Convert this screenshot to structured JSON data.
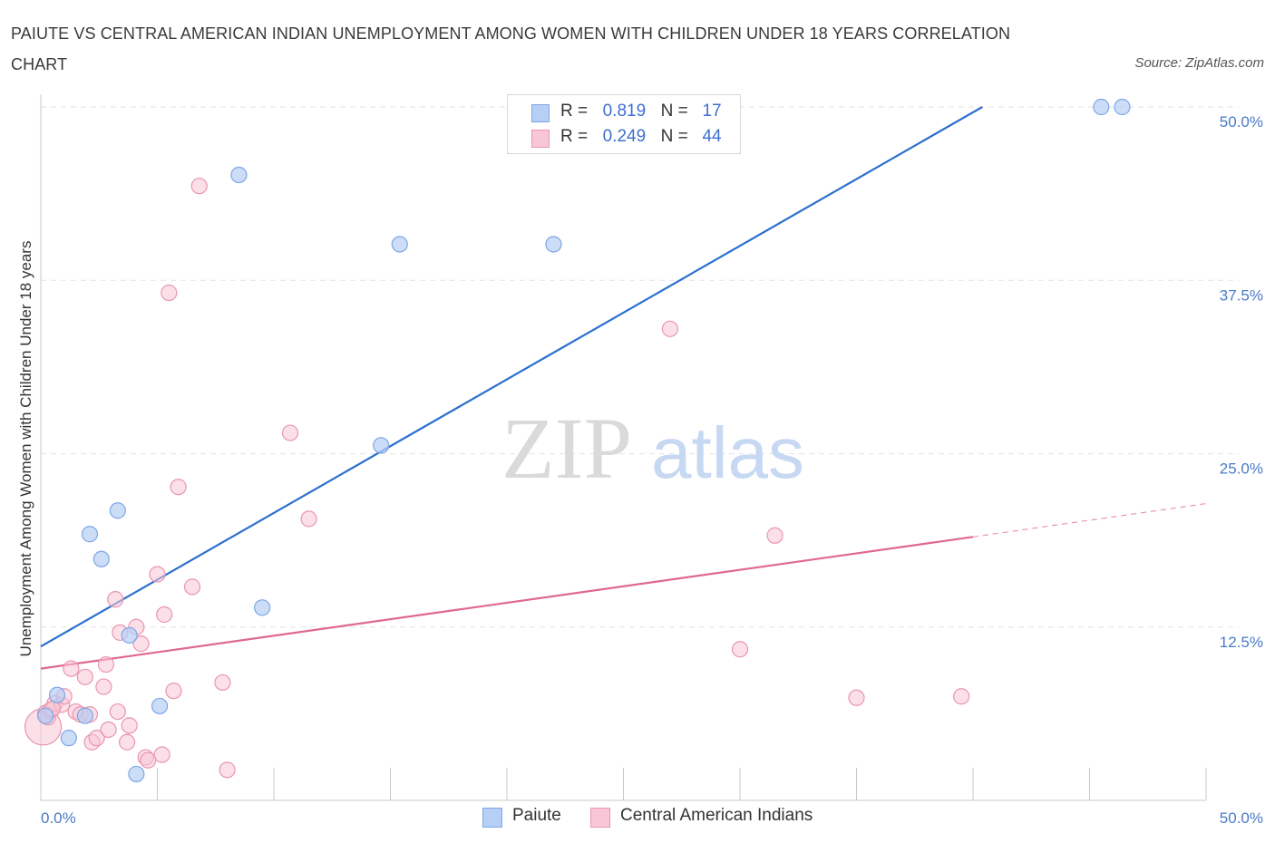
{
  "title": "PAIUTE VS CENTRAL AMERICAN INDIAN UNEMPLOYMENT AMONG WOMEN WITH CHILDREN UNDER 18 YEARS CORRELATION CHART",
  "source": "Source: ZipAtlas.com",
  "watermark": {
    "zip": "ZIP",
    "atlas": "atlas"
  },
  "legend": {
    "r_label": "R =",
    "n_label": "N =",
    "paiute": {
      "r": "0.819",
      "n": "17"
    },
    "central": {
      "r": "0.249",
      "n": "44"
    }
  },
  "colors": {
    "paiute_fill": "#b7cff5",
    "paiute_stroke": "#7ea6e6",
    "paiute_line": "#2a6fcf",
    "central_fill": "#f8c6d6",
    "central_stroke": "#ea95b1",
    "central_line": "#e06794",
    "axis_text": "#4a7ac8"
  },
  "chart_data": {
    "type": "scatter",
    "xlabel": "",
    "ylabel": "Unemployment Among Women with Children Under 18 years",
    "xlim": [
      0,
      50
    ],
    "ylim": [
      0,
      50
    ],
    "x_tick_labels": [
      "0.0%",
      "50.0%"
    ],
    "y_tick_values": [
      12.5,
      25.0,
      37.5,
      50.0
    ],
    "y_tick_labels": [
      "12.5%",
      "25.0%",
      "37.5%",
      "50.0%"
    ],
    "series": [
      {
        "name": "Paiute",
        "points": [
          [
            0.2,
            6.1
          ],
          [
            0.7,
            7.6
          ],
          [
            1.2,
            4.5
          ],
          [
            1.9,
            6.1
          ],
          [
            2.1,
            19.2
          ],
          [
            2.6,
            17.4
          ],
          [
            3.3,
            20.9
          ],
          [
            3.8,
            11.9
          ],
          [
            4.1,
            1.9
          ],
          [
            5.1,
            6.8
          ],
          [
            8.5,
            45.1
          ],
          [
            9.5,
            13.9
          ],
          [
            14.6,
            25.6
          ],
          [
            15.4,
            40.1
          ],
          [
            22.0,
            40.1
          ],
          [
            45.5,
            50.0
          ],
          [
            46.4,
            50.0
          ]
        ],
        "trend": {
          "x": [
            0,
            40.4
          ],
          "y": [
            11.1,
            50.0
          ]
        }
      },
      {
        "name": "Central American Indians",
        "points": [
          [
            0.1,
            5.3
          ],
          [
            0.2,
            6.3
          ],
          [
            0.3,
            6.0
          ],
          [
            0.4,
            6.5
          ],
          [
            0.6,
            7.0
          ],
          [
            0.9,
            6.9
          ],
          [
            1.0,
            7.5
          ],
          [
            1.3,
            9.5
          ],
          [
            1.5,
            6.4
          ],
          [
            1.7,
            6.2
          ],
          [
            1.9,
            8.9
          ],
          [
            2.1,
            6.2
          ],
          [
            2.2,
            4.2
          ],
          [
            2.4,
            4.5
          ],
          [
            2.7,
            8.2
          ],
          [
            2.8,
            9.8
          ],
          [
            2.9,
            5.1
          ],
          [
            3.2,
            14.5
          ],
          [
            3.3,
            6.4
          ],
          [
            3.4,
            12.1
          ],
          [
            3.7,
            4.2
          ],
          [
            3.8,
            5.4
          ],
          [
            4.1,
            12.5
          ],
          [
            4.3,
            11.3
          ],
          [
            4.5,
            3.1
          ],
          [
            4.6,
            2.9
          ],
          [
            5.0,
            16.3
          ],
          [
            5.2,
            3.3
          ],
          [
            5.3,
            13.4
          ],
          [
            5.5,
            36.6
          ],
          [
            5.7,
            7.9
          ],
          [
            5.9,
            22.6
          ],
          [
            6.5,
            15.4
          ],
          [
            6.8,
            44.3
          ],
          [
            7.8,
            8.5
          ],
          [
            8.0,
            2.2
          ],
          [
            10.7,
            26.5
          ],
          [
            11.5,
            20.3
          ],
          [
            27.0,
            34.0
          ],
          [
            30.0,
            10.9
          ],
          [
            31.5,
            19.1
          ],
          [
            35.0,
            7.4
          ],
          [
            39.5,
            7.5
          ],
          [
            0.5,
            6.6
          ]
        ],
        "trend": {
          "x": [
            0,
            40.0
          ],
          "y": [
            9.5,
            19.0
          ]
        },
        "trend_dashed": {
          "x": [
            40.0,
            50.0
          ],
          "y": [
            19.0,
            21.4
          ]
        }
      }
    ]
  }
}
